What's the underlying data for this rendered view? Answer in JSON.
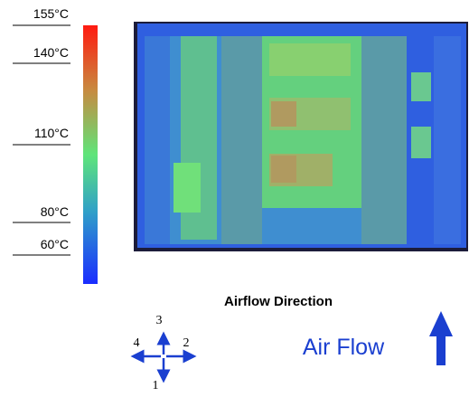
{
  "colorbar": {
    "labels": [
      "155°C",
      "140°C",
      "110°C",
      "80°C",
      "60°C"
    ]
  },
  "airflow": {
    "title": "Airflow Direction",
    "directions": [
      "3",
      "4",
      "2",
      "1"
    ],
    "label": "Air Flow"
  }
}
